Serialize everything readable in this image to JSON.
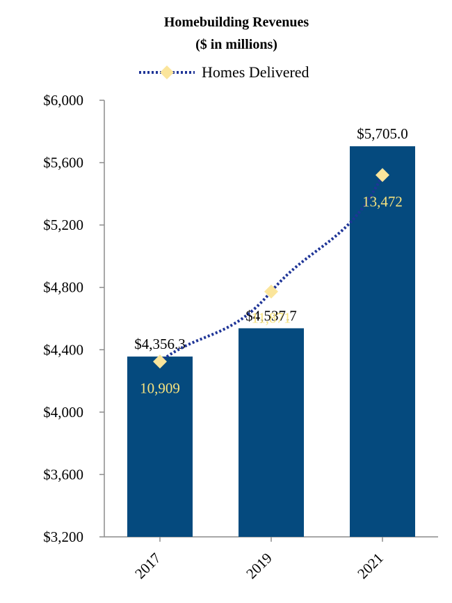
{
  "chart_data": {
    "type": "bar",
    "title": "Homebuilding Revenues",
    "subtitle": "($ in millions)",
    "categories": [
      "2017",
      "2019",
      "2021"
    ],
    "series": [
      {
        "type": "bar",
        "values": [
          4356.3,
          4537.7,
          5705.0
        ],
        "labels": [
          "$4,356.3",
          "$4,537.7",
          "$5,705.0"
        ],
        "color": "#054a7e"
      },
      {
        "name": "Homes Delivered",
        "type": "line",
        "values": [
          10909,
          11871,
          13472
        ],
        "labels": [
          "10,909",
          "11,871",
          "13,472"
        ],
        "line_color": "#1f3597",
        "marker_color": "#fbe59b",
        "label_color": "#f7e37e"
      }
    ],
    "ylim": [
      3200,
      6000
    ],
    "yticks": [
      3200,
      3600,
      4000,
      4400,
      4800,
      5200,
      5600,
      6000
    ],
    "ytick_labels": [
      "$3,200",
      "$3,600",
      "$4,000",
      "$4,400",
      "$4,800",
      "$5,200",
      "$5,600",
      "$6,000"
    ],
    "legend_position": "top",
    "grid": false
  }
}
